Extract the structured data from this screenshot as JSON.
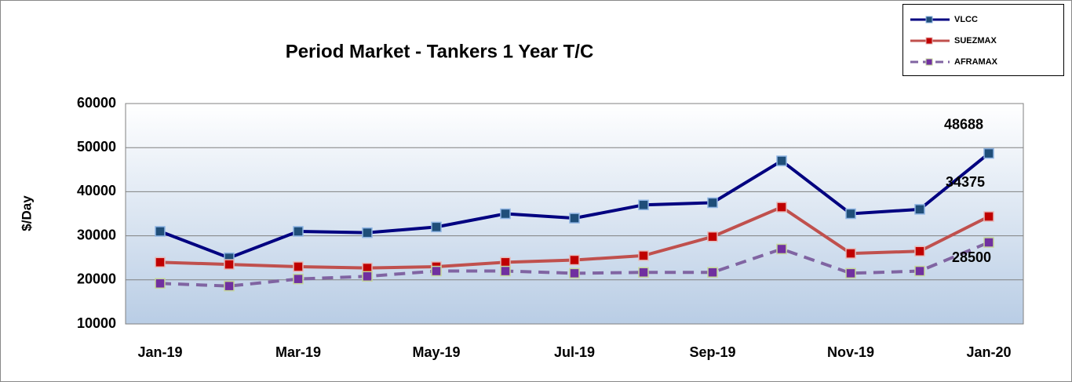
{
  "chart_data": {
    "type": "line",
    "title": "Period Market - Tankers 1 Year T/C",
    "y_label": "$/Day",
    "categories": [
      "Jan-19",
      null,
      "Mar-19",
      null,
      "May-19",
      null,
      "Jul-19",
      null,
      "Sep-19",
      null,
      "Nov-19",
      null,
      "Jan-20"
    ],
    "series": [
      {
        "name": "VLCC",
        "color": "#000080",
        "values": [
          31000,
          25000,
          31000,
          30700,
          32000,
          35000,
          34000,
          37000,
          37500,
          47000,
          35000,
          36000,
          48688
        ]
      },
      {
        "name": "SUEZMAX",
        "color": "#c0504d",
        "values": [
          24000,
          23500,
          23000,
          22700,
          23000,
          24000,
          24500,
          25500,
          29800,
          36500,
          26000,
          26500,
          34375
        ]
      },
      {
        "name": "AFRAMAX",
        "color": "#8064a2",
        "values": [
          19200,
          18600,
          20200,
          20800,
          22000,
          22000,
          21500,
          21700,
          21700,
          27000,
          21500,
          22000,
          28500
        ]
      }
    ],
    "ylim": [
      10000,
      60000
    ],
    "yticks": [
      10000,
      20000,
      30000,
      40000,
      50000,
      60000
    ],
    "grid": true
  }
}
